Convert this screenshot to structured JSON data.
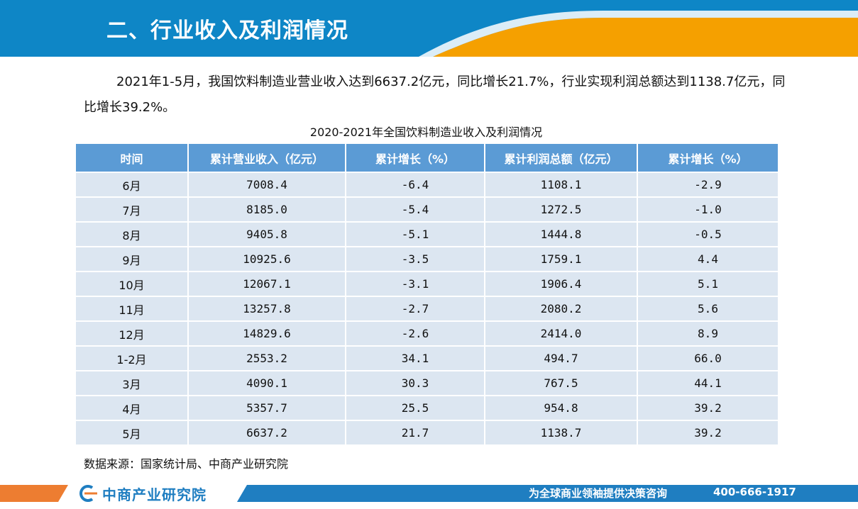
{
  "header": {
    "title": "二、行业收入及利润情况"
  },
  "paragraph": "2021年1-5月，我国饮料制造业营业收入达到6637.2亿元，同比增长21.7%，行业实现利润总额达到1138.7亿元，同比增长39.2%。",
  "table": {
    "caption": "2020-2021年全国饮料制造业收入及利润情况",
    "headers": [
      "时间",
      "累计营业收入（亿元）",
      "累计增长（%）",
      "累计利润总额（亿元）",
      "累计增长（%）"
    ],
    "rows": [
      [
        "6月",
        "7008.4",
        "-6.4",
        "1108.1",
        "-2.9"
      ],
      [
        "7月",
        "8185.0",
        "-5.4",
        "1272.5",
        "-1.0"
      ],
      [
        "8月",
        "9405.8",
        "-5.1",
        "1444.8",
        "-0.5"
      ],
      [
        "9月",
        "10925.6",
        "-3.5",
        "1759.1",
        "4.4"
      ],
      [
        "10月",
        "12067.1",
        "-3.1",
        "1906.4",
        "5.1"
      ],
      [
        "11月",
        "13257.8",
        "-2.7",
        "2080.2",
        "5.6"
      ],
      [
        "12月",
        "14829.6",
        "-2.6",
        "2414.0",
        "8.9"
      ],
      [
        "1-2月",
        "2553.2",
        "34.1",
        "494.7",
        "66.0"
      ],
      [
        "3月",
        "4090.1",
        "30.3",
        "767.5",
        "44.1"
      ],
      [
        "4月",
        "5357.7",
        "25.5",
        "954.8",
        "39.2"
      ],
      [
        "5月",
        "6637.2",
        "21.7",
        "1138.7",
        "39.2"
      ]
    ]
  },
  "source": "数据来源：国家统计局、中商产业研究院",
  "footer": {
    "logo_text": "中商产业研究院",
    "slogan": "为全球商业领袖提供决策咨询",
    "phone": "400-666-1917"
  },
  "colors": {
    "header_blue": "#0e86c6",
    "accent_orange": "#f5a000",
    "table_header": "#5b9bd5",
    "table_row": "#dce6f1"
  },
  "icons": {
    "logo": "c-swoosh-logo-icon"
  }
}
